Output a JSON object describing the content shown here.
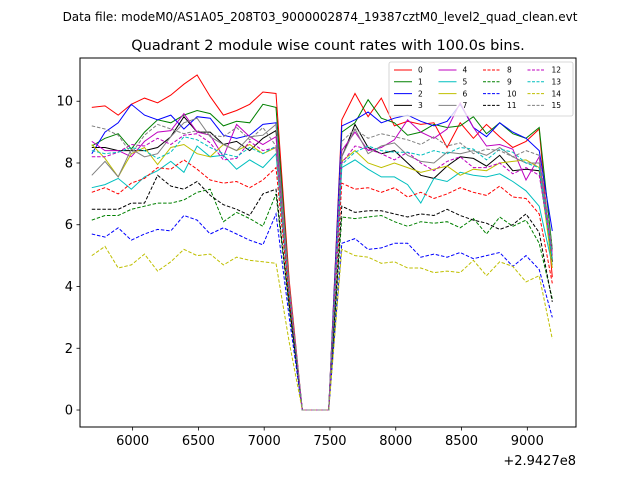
{
  "header": {
    "suptitle": "Data file: modeM0/AS1A05_208T03_9000002874_19387cztM0_level2_quad_clean.evt"
  },
  "chart_data": {
    "type": "line",
    "title": "Quadrant 2 module wise count rates with 100.0s bins.",
    "xlabel": "",
    "ylabel": "",
    "x_offset_label": "+2.9427e8",
    "xlim": [
      5600,
      9370
    ],
    "ylim": [
      -0.55,
      11.4
    ],
    "xticks": [
      6000,
      6500,
      7000,
      7500,
      8000,
      8500,
      9000
    ],
    "xtick_labels": [
      "6000",
      "6500",
      "7000",
      "7500",
      "8000",
      "8500",
      "9000"
    ],
    "yticks": [
      0,
      2,
      4,
      6,
      8,
      10
    ],
    "ytick_labels": [
      "0",
      "2",
      "4",
      "6",
      "8",
      "10"
    ],
    "legend_position": "top-right",
    "legend_columns": 4,
    "x": [
      5690,
      5790,
      5890,
      5990,
      6090,
      6190,
      6290,
      6390,
      6490,
      6590,
      6690,
      6790,
      6890,
      6990,
      7090,
      7190,
      7290,
      7390,
      7490,
      7590,
      7690,
      7790,
      7890,
      7990,
      8090,
      8190,
      8290,
      8390,
      8490,
      8590,
      8690,
      8790,
      8890,
      8990,
      9090,
      9190
    ],
    "series": [
      {
        "name": "0",
        "color": "#ff0000",
        "dash": "solid",
        "values": [
          9.8,
          9.85,
          9.55,
          9.9,
          10.1,
          9.95,
          10.2,
          10.55,
          10.85,
          10.15,
          9.55,
          9.7,
          9.9,
          10.3,
          10.25,
          4.2,
          0,
          0,
          0,
          9.4,
          10.25,
          9.5,
          10.1,
          9.2,
          9.35,
          9.25,
          9.3,
          8.5,
          9.3,
          8.8,
          9.25,
          8.85,
          8.5,
          8.7,
          9.1,
          4.3
        ]
      },
      {
        "name": "1",
        "color": "#008000",
        "dash": "solid",
        "values": [
          8.55,
          8.8,
          8.95,
          8.45,
          9.0,
          9.4,
          9.3,
          9.55,
          9.7,
          9.6,
          9.2,
          9.35,
          9.3,
          9.9,
          9.8,
          4.0,
          0,
          0,
          0,
          9.0,
          9.3,
          10.05,
          9.45,
          9.3,
          8.9,
          9.0,
          9.25,
          9.15,
          9.2,
          9.5,
          8.95,
          9.3,
          8.95,
          8.8,
          9.15,
          5.2
        ]
      },
      {
        "name": "2",
        "color": "#0000ff",
        "dash": "solid",
        "values": [
          8.3,
          9.0,
          9.3,
          9.9,
          9.55,
          9.4,
          9.55,
          9.1,
          9.5,
          9.45,
          8.9,
          8.8,
          8.9,
          9.25,
          9.3,
          3.9,
          0,
          0,
          0,
          9.2,
          9.4,
          9.65,
          9.3,
          9.45,
          9.55,
          9.35,
          9.2,
          9.35,
          9.9,
          9.15,
          8.85,
          9.3,
          9.0,
          8.8,
          8.4,
          5.8
        ]
      },
      {
        "name": "3",
        "color": "#000000",
        "dash": "solid",
        "values": [
          8.5,
          8.5,
          8.4,
          8.4,
          8.4,
          8.5,
          8.85,
          9.5,
          9.0,
          9.0,
          8.6,
          8.7,
          8.4,
          8.8,
          9.05,
          3.8,
          0,
          0,
          0,
          8.2,
          9.25,
          8.5,
          8.3,
          8.4,
          8.0,
          7.6,
          7.5,
          7.9,
          8.2,
          8.15,
          7.9,
          8.25,
          7.75,
          7.8,
          7.75,
          4.8
        ]
      },
      {
        "name": "4",
        "color": "#bf00bf",
        "dash": "solid",
        "values": [
          8.7,
          8.4,
          8.4,
          8.2,
          8.7,
          9.0,
          9.05,
          9.6,
          9.0,
          8.9,
          8.2,
          9.25,
          8.85,
          8.6,
          8.85,
          3.9,
          0,
          0,
          0,
          8.4,
          9.0,
          8.4,
          8.5,
          8.75,
          9.4,
          9.0,
          8.8,
          9.1,
          9.95,
          9.15,
          8.55,
          8.6,
          8.45,
          7.45,
          8.2,
          5.0
        ]
      },
      {
        "name": "5",
        "color": "#00bfbf",
        "dash": "solid",
        "values": [
          7.2,
          7.3,
          7.5,
          7.15,
          7.55,
          7.75,
          8.05,
          7.7,
          8.55,
          8.2,
          8.25,
          7.8,
          8.1,
          7.85,
          8.3,
          3.6,
          0,
          0,
          0,
          7.85,
          8.1,
          7.8,
          7.55,
          7.55,
          7.3,
          6.7,
          7.5,
          7.4,
          7.7,
          7.6,
          7.55,
          7.65,
          7.4,
          7.1,
          6.6,
          4.7
        ]
      },
      {
        "name": "6",
        "color": "#bfbf00",
        "dash": "solid",
        "values": [
          8.6,
          8.15,
          7.55,
          8.3,
          8.5,
          7.95,
          8.5,
          8.6,
          8.3,
          8.2,
          8.6,
          8.4,
          8.6,
          8.3,
          8.5,
          3.9,
          0,
          0,
          0,
          8.05,
          8.4,
          8.0,
          7.85,
          8.0,
          7.85,
          7.7,
          7.8,
          7.9,
          7.6,
          7.8,
          7.75,
          8.0,
          8.05,
          8.1,
          7.85,
          4.6
        ]
      },
      {
        "name": "7",
        "color": "#808080",
        "dash": "solid",
        "values": [
          7.6,
          8.05,
          7.55,
          8.45,
          8.2,
          8.3,
          8.85,
          9.3,
          9.45,
          8.85,
          8.6,
          8.4,
          8.85,
          8.9,
          9.25,
          4.0,
          0,
          0,
          0,
          8.2,
          9.1,
          8.3,
          8.55,
          8.65,
          8.25,
          8.05,
          8.0,
          8.35,
          8.3,
          8.4,
          8.25,
          8.5,
          8.2,
          8.0,
          8.0,
          4.9
        ]
      },
      {
        "name": "8",
        "color": "#ff0000",
        "dash": "dashed",
        "values": [
          7.05,
          7.2,
          7.0,
          7.35,
          7.5,
          7.85,
          7.8,
          8.1,
          7.8,
          7.45,
          7.35,
          7.4,
          7.2,
          7.45,
          7.85,
          3.6,
          0,
          0,
          0,
          7.35,
          7.15,
          7.2,
          7.05,
          7.2,
          6.9,
          7.05,
          6.85,
          7.0,
          7.2,
          7.05,
          6.95,
          7.25,
          6.9,
          6.85,
          6.35,
          4.1
        ]
      },
      {
        "name": "9",
        "color": "#008000",
        "dash": "dashed",
        "values": [
          6.15,
          6.3,
          6.3,
          6.5,
          6.6,
          6.7,
          6.7,
          6.8,
          7.05,
          7.15,
          6.1,
          6.4,
          6.2,
          5.95,
          7.0,
          3.3,
          0,
          0,
          0,
          6.25,
          6.2,
          6.25,
          6.3,
          6.1,
          5.95,
          6.1,
          6.05,
          6.1,
          5.9,
          6.2,
          5.7,
          6.25,
          5.95,
          6.15,
          5.4,
          3.6
        ]
      },
      {
        "name": "10",
        "color": "#0000ff",
        "dash": "dashed",
        "values": [
          5.7,
          5.6,
          5.9,
          5.5,
          5.7,
          5.85,
          5.8,
          6.3,
          6.15,
          5.7,
          5.9,
          5.7,
          5.5,
          5.35,
          6.35,
          3.0,
          0,
          0,
          0,
          5.4,
          5.55,
          5.2,
          5.25,
          5.4,
          5.4,
          4.95,
          5.05,
          4.95,
          5.1,
          4.9,
          5.0,
          5.1,
          4.65,
          5.0,
          4.55,
          3.0
        ]
      },
      {
        "name": "11",
        "color": "#000000",
        "dash": "dashed",
        "values": [
          6.5,
          6.5,
          6.5,
          6.7,
          6.7,
          7.6,
          7.25,
          7.15,
          7.4,
          6.95,
          6.65,
          6.5,
          6.3,
          7.0,
          7.15,
          3.4,
          0,
          0,
          0,
          6.6,
          6.4,
          6.45,
          6.45,
          6.35,
          6.25,
          6.35,
          6.3,
          6.5,
          6.3,
          6.15,
          6.05,
          5.85,
          6.0,
          6.35,
          5.75,
          3.5
        ]
      },
      {
        "name": "12",
        "color": "#bf00bf",
        "dash": "dashed",
        "values": [
          8.2,
          8.2,
          8.35,
          8.6,
          8.55,
          8.8,
          8.6,
          8.9,
          8.95,
          8.65,
          8.1,
          8.15,
          8.7,
          8.4,
          8.5,
          3.9,
          0,
          0,
          0,
          8.0,
          8.55,
          8.45,
          8.3,
          8.1,
          8.35,
          8.0,
          7.75,
          8.05,
          8.2,
          7.85,
          7.85,
          8.0,
          7.65,
          7.85,
          7.6,
          5.1
        ]
      },
      {
        "name": "13",
        "color": "#00bfbf",
        "dash": "dashed",
        "values": [
          8.4,
          8.3,
          8.35,
          8.5,
          8.4,
          8.15,
          8.35,
          8.85,
          8.75,
          8.5,
          8.3,
          8.2,
          8.5,
          8.3,
          8.55,
          3.9,
          0,
          0,
          0,
          7.95,
          8.35,
          8.55,
          8.4,
          8.35,
          8.35,
          8.25,
          8.4,
          8.3,
          8.5,
          8.45,
          8.1,
          8.45,
          8.35,
          8.0,
          7.85,
          4.9
        ]
      },
      {
        "name": "14",
        "color": "#bfbf00",
        "dash": "dashed",
        "values": [
          5.0,
          5.3,
          4.6,
          4.7,
          5.05,
          4.5,
          4.8,
          5.2,
          5.0,
          5.05,
          4.7,
          4.95,
          4.85,
          4.8,
          4.75,
          2.2,
          0,
          0,
          0,
          5.2,
          5.0,
          4.95,
          4.75,
          4.8,
          4.6,
          4.6,
          4.45,
          4.5,
          4.45,
          4.85,
          4.35,
          4.8,
          4.65,
          4.15,
          4.35,
          2.3
        ]
      },
      {
        "name": "15",
        "color": "#808080",
        "dash": "dashed",
        "values": [
          9.2,
          9.1,
          8.9,
          8.3,
          8.9,
          9.25,
          9.1,
          8.95,
          9.05,
          8.9,
          8.85,
          9.15,
          8.75,
          9.15,
          8.55,
          4.0,
          0,
          0,
          0,
          8.7,
          9.1,
          8.8,
          8.95,
          8.85,
          8.75,
          8.6,
          8.85,
          8.55,
          8.65,
          8.3,
          8.45,
          8.4,
          8.2,
          8.4,
          8.25,
          5.2
        ]
      }
    ]
  }
}
